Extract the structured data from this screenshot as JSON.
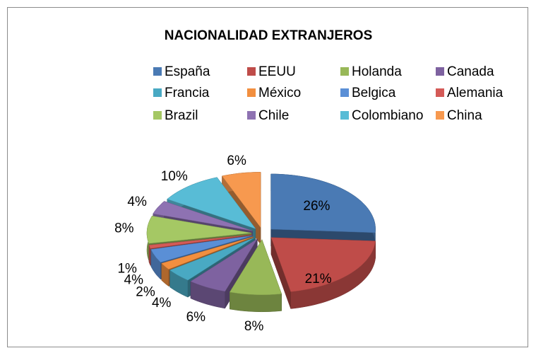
{
  "chart_data": {
    "type": "pie",
    "title": "NACIONALIDAD EXTRANJEROS",
    "categories": [
      "España",
      "EEUU",
      "Holanda",
      "Canada",
      "Francia",
      "México",
      "Belgica",
      "Alemania",
      "Brazil",
      "Chile",
      "Colombiano",
      "China"
    ],
    "values": [
      26,
      21,
      8,
      6,
      4,
      2,
      4,
      1,
      8,
      4,
      10,
      6
    ],
    "value_labels": [
      "26%",
      "21%",
      "8%",
      "6%",
      "4%",
      "2%",
      "4%",
      "1%",
      "8%",
      "4%",
      "10%",
      "6%"
    ],
    "colors": [
      "#4a7ab4",
      "#bf4c49",
      "#98b858",
      "#7e62a0",
      "#49a9c3",
      "#f28f3f",
      "#5a8fd6",
      "#d45a57",
      "#a5c864",
      "#8e72b2",
      "#58bcd6",
      "#f7994f"
    ],
    "legend": "top"
  }
}
